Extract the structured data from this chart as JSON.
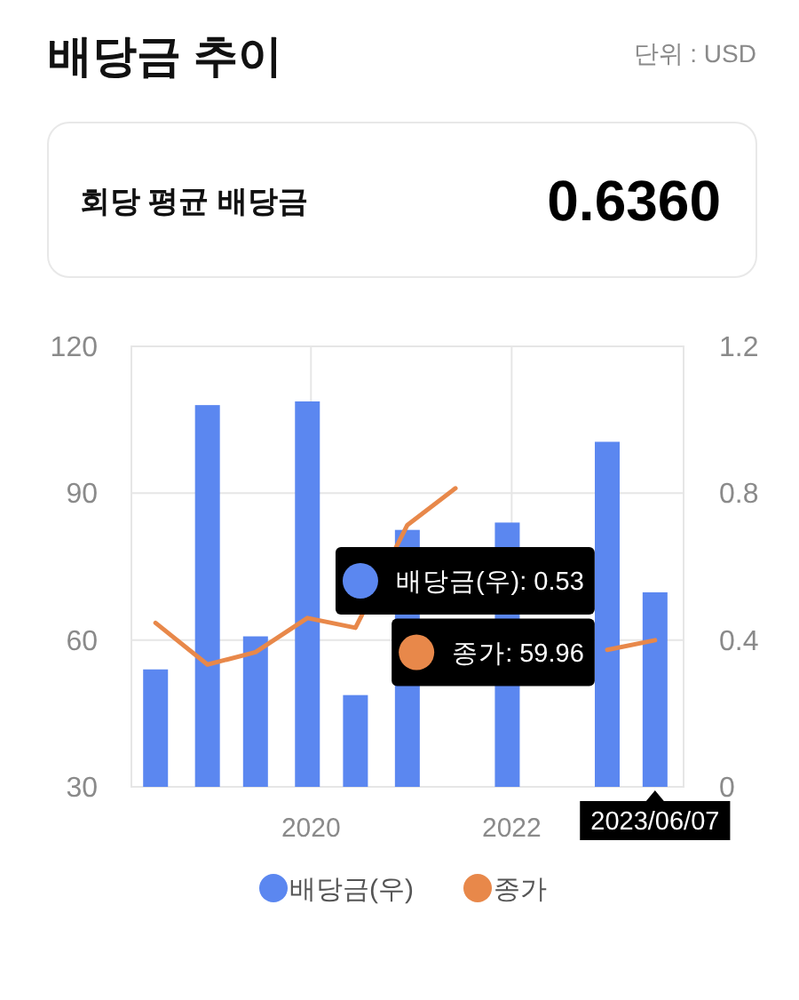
{
  "chart_data": [
    {
      "type": "bar",
      "title": "배당금 추이",
      "annotations": [
        "단위 : USD",
        "배당금(우): 0.53",
        "종가: 59.96",
        "2023/06/07"
      ],
      "x": [
        "2018-06-14",
        "2018-12-20",
        "2019-06-13",
        "2019-12-19",
        "2020-06-11",
        "2020-12-17",
        "2021-06-10",
        "2021-12-16",
        "2022-12-15",
        "2023-06-07"
      ],
      "xlim": [
        "2018-03-18",
        "2023-09-19"
      ],
      "xticks": [
        "2020",
        "2022"
      ],
      "ylim": [
        30,
        120
      ],
      "yticks": [
        30,
        60,
        90,
        120
      ],
      "y2lim": [
        0,
        1.2
      ],
      "y2ticks": [
        0,
        0.4,
        0.8,
        1.2
      ],
      "grid": true,
      "legend": "bottom",
      "series": [
        {
          "name": "배당금(우)",
          "type": "bar",
          "axis": "y2",
          "color": "#5b87f0",
          "values": [
            0.32,
            1.04,
            0.41,
            1.05,
            0.25,
            0.7,
            null,
            0.72,
            0.94,
            0.53
          ]
        },
        {
          "name": "종가",
          "type": "line",
          "color": "#e8884a",
          "values": [
            63.5,
            55,
            57.5,
            64.5,
            62.5,
            83.5,
            91,
            null,
            58,
            59.96
          ]
        }
      ]
    },
    {
      "type": "other",
      "title": "회당 평균 배당금",
      "annotations": [
        "0.6360"
      ]
    }
  ]
}
